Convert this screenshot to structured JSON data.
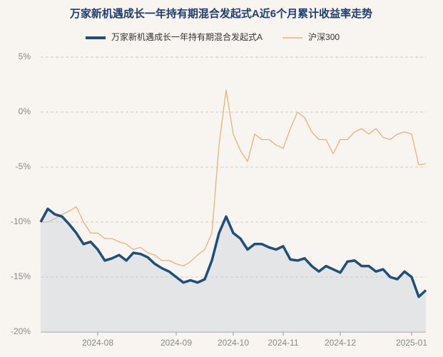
{
  "chart_data": {
    "type": "line",
    "title": "万家新机遇成长一年持有期混合发起式A近6个月累计收益率走势",
    "categories": [
      null,
      null,
      null,
      null,
      null,
      null,
      null,
      null,
      "2024-08",
      null,
      null,
      null,
      null,
      null,
      null,
      null,
      null,
      null,
      null,
      "2024-09",
      null,
      null,
      null,
      null,
      null,
      null,
      null,
      "2024-10",
      null,
      null,
      null,
      null,
      null,
      null,
      "2024-11",
      null,
      null,
      null,
      null,
      null,
      null,
      null,
      "2024-12",
      null,
      null,
      null,
      null,
      null,
      null,
      null,
      null,
      null,
      "2025-01",
      null,
      null
    ],
    "series": [
      {
        "name": "万家新机遇成长一年持有期混合发起式A",
        "color": "#1f4e79",
        "area": true,
        "values": [
          -10,
          -8.8,
          -9.3,
          -9.5,
          -10.2,
          -11,
          -12,
          -11.8,
          -12.5,
          -13.5,
          -13.3,
          -13,
          -13.5,
          -12.8,
          -12.9,
          -13.2,
          -13.8,
          -14.2,
          -14.5,
          -15,
          -15.5,
          -15.3,
          -15.5,
          -15.2,
          -13.5,
          -11,
          -9.5,
          -11,
          -11.5,
          -12.5,
          -12,
          -12,
          -12.3,
          -12.5,
          -12.2,
          -13.4,
          -13.5,
          -13.3,
          -14,
          -14.5,
          -14,
          -14.3,
          -14.6,
          -13.6,
          -13.5,
          -14,
          -14,
          -14.5,
          -14.3,
          -15,
          -15.2,
          -14.5,
          -15,
          -16.8,
          -16.2
        ]
      },
      {
        "name": "沪深300",
        "color": "#e8b07a",
        "values": [
          -10,
          -10,
          -9.7,
          -9.3,
          -9,
          -8.6,
          -10,
          -11,
          -11,
          -11.5,
          -11.5,
          -11.8,
          -12,
          -12.5,
          -12.3,
          -12.8,
          -13,
          -13.5,
          -13.5,
          -13.8,
          -14,
          -13.6,
          -13,
          -12.5,
          -11,
          -3,
          2,
          -2,
          -3.5,
          -4.5,
          -2,
          -2.5,
          -2.5,
          -3,
          -3.3,
          -1.5,
          0,
          -0.5,
          -1.8,
          -2.5,
          -2.5,
          -3.8,
          -2.5,
          -2.5,
          -1.8,
          -1.5,
          -2,
          -1.5,
          -2.3,
          -2.5,
          -2,
          -1.8,
          -2,
          -4.8,
          -4.7
        ]
      }
    ],
    "ylim": [
      -20,
      5
    ],
    "yticks": [
      {
        "value": -20,
        "label": "-20%"
      },
      {
        "value": -15,
        "label": "-15%"
      },
      {
        "value": -10,
        "label": "-10%"
      },
      {
        "value": -5,
        "label": "-5%"
      },
      {
        "value": 0,
        "label": "0%"
      },
      {
        "value": 5,
        "label": "5%"
      }
    ],
    "grid": true
  }
}
